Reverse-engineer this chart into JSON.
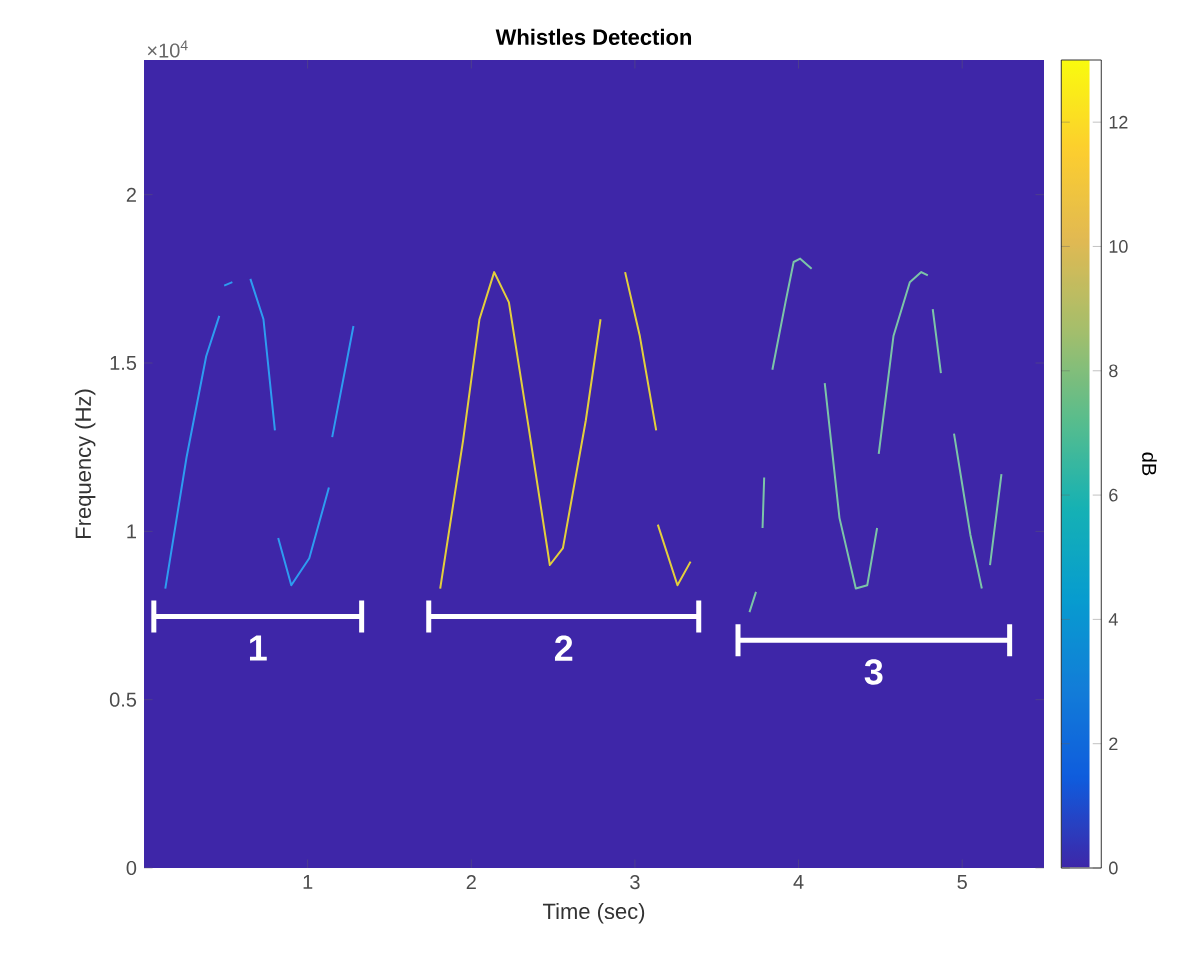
{
  "chart_data": {
    "type": "line",
    "title": "Whistles Detection",
    "xlabel": "Time (sec)",
    "ylabel": "Frequency (Hz)",
    "clabel": "dB",
    "xlim": [
      0,
      5.5
    ],
    "ylim": [
      0,
      2.4
    ],
    "xticks": [
      1,
      2,
      3,
      4,
      5
    ],
    "yticks": [
      0,
      0.5,
      1,
      1.5,
      2
    ],
    "clim": [
      0,
      13
    ],
    "cticks": [
      0,
      2,
      4,
      6,
      8,
      10,
      12
    ],
    "grid": false,
    "marker": "none",
    "line_style": "solid",
    "annotations": [
      "×10$^{4}$",
      "1",
      "2",
      "3"
    ],
    "series": [
      {
        "color": "#2e9cf0",
        "x": [
          0.13,
          0.26,
          0.38,
          0.46,
          0.47,
          0.49,
          0.54,
          0.56,
          0.65,
          0.73,
          0.8,
          0.81,
          0.82,
          0.9,
          1.01,
          1.13,
          1.14,
          1.15,
          1.28
        ],
        "values": [
          0.83,
          1.22,
          1.52,
          1.64,
          null,
          1.73,
          1.74,
          null,
          1.75,
          1.63,
          1.3,
          null,
          0.98,
          0.84,
          0.92,
          1.13,
          null,
          1.28,
          1.61
        ]
      },
      {
        "color": "#e3cf3c",
        "x": [
          1.81,
          1.95,
          2.05,
          2.14,
          2.23,
          2.35,
          2.48,
          2.56,
          2.7,
          2.79,
          2.85,
          2.94,
          3.03,
          3.13,
          3.135,
          3.14,
          3.26,
          3.34
        ],
        "values": [
          0.83,
          1.27,
          1.63,
          1.77,
          1.68,
          1.31,
          0.9,
          0.95,
          1.33,
          1.63,
          null,
          1.77,
          1.58,
          1.3,
          null,
          1.02,
          0.84,
          0.91
        ]
      },
      {
        "color": "#7cc4a8",
        "x": [
          3.7,
          3.74,
          3.76,
          3.78,
          3.79,
          3.81,
          3.84,
          3.92,
          3.97,
          4.01,
          4.08,
          4.12,
          4.16,
          4.25,
          4.35,
          4.42,
          4.48,
          4.485,
          4.49,
          4.58,
          4.68,
          4.75,
          4.79,
          4.8,
          4.82,
          4.87,
          4.9,
          4.95,
          5.05,
          5.12,
          5.14,
          5.17,
          5.24
        ],
        "values": [
          0.76,
          0.82,
          null,
          1.01,
          1.16,
          null,
          1.48,
          1.68,
          1.8,
          1.81,
          1.78,
          null,
          1.44,
          1.04,
          0.83,
          0.84,
          1.01,
          null,
          1.23,
          1.58,
          1.74,
          1.77,
          1.76,
          null,
          1.66,
          1.47,
          null,
          1.29,
          0.99,
          0.83,
          null,
          0.9,
          1.17
        ]
      }
    ]
  }
}
